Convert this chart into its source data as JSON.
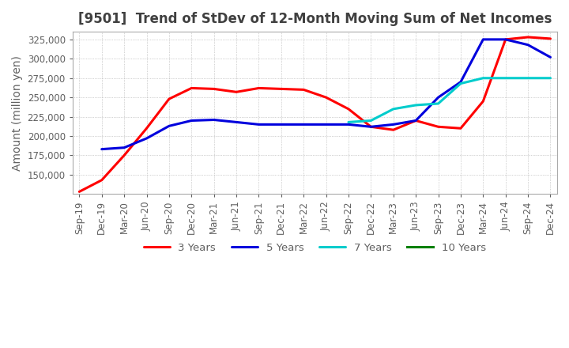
{
  "title": "[9501]  Trend of StDev of 12-Month Moving Sum of Net Incomes",
  "ylabel": "Amount (million yen)",
  "ylim": [
    125000,
    335000
  ],
  "yticks": [
    150000,
    175000,
    200000,
    225000,
    250000,
    275000,
    300000,
    325000
  ],
  "x_labels": [
    "Sep-19",
    "Dec-19",
    "Mar-20",
    "Jun-20",
    "Sep-20",
    "Dec-20",
    "Mar-21",
    "Jun-21",
    "Sep-21",
    "Dec-21",
    "Mar-22",
    "Jun-22",
    "Sep-22",
    "Dec-22",
    "Mar-23",
    "Jun-23",
    "Sep-23",
    "Dec-23",
    "Mar-24",
    "Jun-24",
    "Sep-24",
    "Dec-24"
  ],
  "series": {
    "3 Years": {
      "color": "#ff0000",
      "values": [
        128000,
        143000,
        175000,
        210000,
        248000,
        262000,
        261000,
        257000,
        262000,
        261000,
        260000,
        250000,
        235000,
        212000,
        208000,
        220000,
        212000,
        210000,
        245000,
        325000,
        328000,
        326000
      ]
    },
    "5 Years": {
      "color": "#0000dd",
      "values": [
        null,
        183000,
        185000,
        197000,
        213000,
        220000,
        221000,
        218000,
        215000,
        215000,
        215000,
        215000,
        215000,
        212000,
        215000,
        220000,
        250000,
        270000,
        325000,
        325000,
        318000,
        302000
      ]
    },
    "7 Years": {
      "color": "#00cccc",
      "values": [
        null,
        null,
        null,
        null,
        null,
        null,
        null,
        null,
        null,
        null,
        null,
        null,
        218000,
        220000,
        235000,
        240000,
        242000,
        268000,
        275000,
        275000,
        275000,
        275000
      ]
    },
    "10 Years": {
      "color": "#008000",
      "values": [
        null,
        null,
        null,
        null,
        null,
        null,
        null,
        null,
        null,
        null,
        null,
        null,
        null,
        null,
        null,
        null,
        null,
        null,
        null,
        null,
        null,
        null
      ]
    }
  },
  "legend_labels": [
    "3 Years",
    "5 Years",
    "7 Years",
    "10 Years"
  ],
  "legend_colors": [
    "#ff0000",
    "#0000dd",
    "#00cccc",
    "#008000"
  ],
  "title_color": "#404040",
  "axis_color": "#606060",
  "grid_color": "#aaaaaa",
  "background_color": "#ffffff",
  "title_fontsize": 12,
  "tick_fontsize": 8.5,
  "label_fontsize": 10
}
